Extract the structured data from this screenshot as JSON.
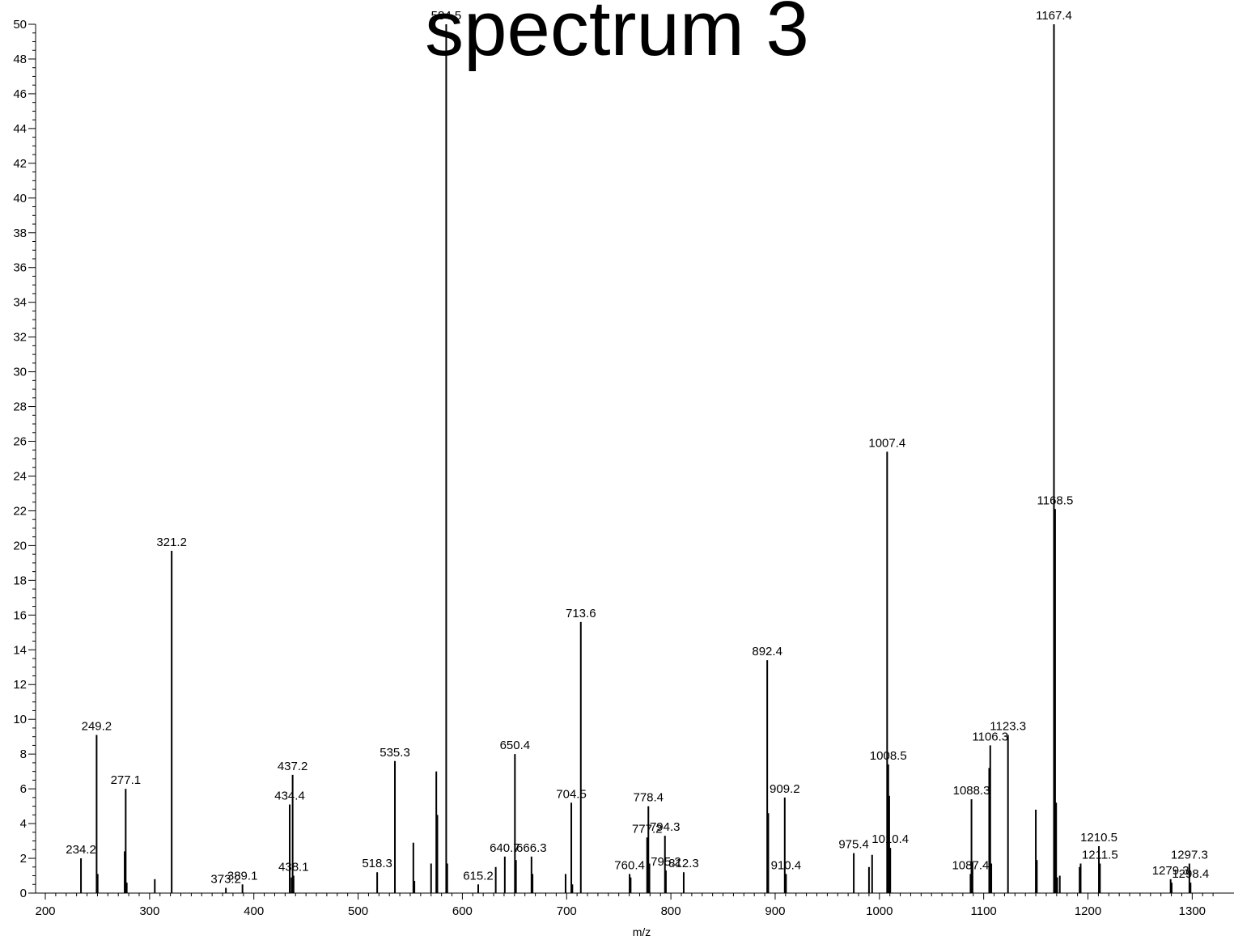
{
  "chart_data": {
    "type": "bar",
    "title": "spectrum 3",
    "xlabel": "m/z",
    "ylabel": "",
    "xlim": [
      195,
      1325
    ],
    "ylim": [
      0,
      50
    ],
    "x_ticks": [
      200,
      300,
      400,
      500,
      600,
      700,
      800,
      900,
      1000,
      1100,
      1200,
      1300
    ],
    "y_ticks": [
      0,
      2,
      4,
      6,
      8,
      10,
      12,
      14,
      16,
      18,
      20,
      22,
      24,
      26,
      28,
      30,
      32,
      34,
      36,
      38,
      40,
      42,
      44,
      46,
      48,
      50
    ],
    "grid": false,
    "colors": {
      "peaks": "#000000",
      "label_tick": "#2ca02c"
    },
    "labeled_peaks": [
      {
        "label": "234.2",
        "x": 234.2,
        "y": 2.0
      },
      {
        "label": "249.2",
        "x": 249.2,
        "y": 9.1
      },
      {
        "label": "277.1",
        "x": 277.1,
        "y": 6.0
      },
      {
        "label": "321.2",
        "x": 321.2,
        "y": 19.7
      },
      {
        "label": "373.2",
        "x": 373.2,
        "y": 0.3
      },
      {
        "label": "389.1",
        "x": 389.1,
        "y": 0.5
      },
      {
        "label": "434.4",
        "x": 434.4,
        "y": 5.1
      },
      {
        "label": "437.2",
        "x": 437.2,
        "y": 6.8
      },
      {
        "label": "438.1",
        "x": 438.1,
        "y": 1.0
      },
      {
        "label": "518.3",
        "x": 518.3,
        "y": 1.2
      },
      {
        "label": "535.3",
        "x": 535.3,
        "y": 7.6
      },
      {
        "label": "584.5",
        "x": 584.5,
        "y": 50.0
      },
      {
        "label": "615.2",
        "x": 615.2,
        "y": 0.5
      },
      {
        "label": "640.7",
        "x": 640.7,
        "y": 2.1
      },
      {
        "label": "650.4",
        "x": 650.4,
        "y": 8.0
      },
      {
        "label": "666.3",
        "x": 666.3,
        "y": 2.1
      },
      {
        "label": "704.5",
        "x": 704.5,
        "y": 5.2
      },
      {
        "label": "713.6",
        "x": 713.6,
        "y": 15.6
      },
      {
        "label": "760.4",
        "x": 760.4,
        "y": 1.1
      },
      {
        "label": "777.2",
        "x": 777.2,
        "y": 3.2
      },
      {
        "label": "778.4",
        "x": 778.4,
        "y": 5.0
      },
      {
        "label": "794.3",
        "x": 794.3,
        "y": 3.3
      },
      {
        "label": "795.2",
        "x": 795.2,
        "y": 1.3
      },
      {
        "label": "812.3",
        "x": 812.3,
        "y": 1.2
      },
      {
        "label": "892.4",
        "x": 892.4,
        "y": 13.4
      },
      {
        "label": "909.2",
        "x": 909.2,
        "y": 5.5
      },
      {
        "label": "910.4",
        "x": 910.4,
        "y": 1.1
      },
      {
        "label": "975.4",
        "x": 975.4,
        "y": 2.3
      },
      {
        "label": "1007.4",
        "x": 1007.4,
        "y": 25.4
      },
      {
        "label": "1008.5",
        "x": 1008.5,
        "y": 7.4
      },
      {
        "label": "1010.4",
        "x": 1010.4,
        "y": 2.6
      },
      {
        "label": "1087.4",
        "x": 1087.4,
        "y": 1.1
      },
      {
        "label": "1088.3",
        "x": 1088.3,
        "y": 5.4
      },
      {
        "label": "1106.3",
        "x": 1106.3,
        "y": 8.5
      },
      {
        "label": "1123.3",
        "x": 1123.3,
        "y": 9.1
      },
      {
        "label": "1167.4",
        "x": 1167.4,
        "y": 50.0
      },
      {
        "label": "1168.5",
        "x": 1168.5,
        "y": 22.1
      },
      {
        "label": "1210.5",
        "x": 1210.5,
        "y": 2.7
      },
      {
        "label": "1211.5",
        "x": 1211.5,
        "y": 1.7
      },
      {
        "label": "1279.3",
        "x": 1279.3,
        "y": 0.8
      },
      {
        "label": "1297.3",
        "x": 1297.3,
        "y": 1.7
      },
      {
        "label": "1298.4",
        "x": 1298.4,
        "y": 0.6
      }
    ],
    "minor_peaks": [
      {
        "x": 250.2,
        "y": 1.1
      },
      {
        "x": 276.1,
        "y": 2.4
      },
      {
        "x": 278.1,
        "y": 0.6
      },
      {
        "x": 305.0,
        "y": 0.8
      },
      {
        "x": 436.2,
        "y": 0.9
      },
      {
        "x": 553.0,
        "y": 2.9
      },
      {
        "x": 554.0,
        "y": 0.7
      },
      {
        "x": 570.0,
        "y": 1.7
      },
      {
        "x": 575.0,
        "y": 7.0
      },
      {
        "x": 576.0,
        "y": 4.5
      },
      {
        "x": 585.5,
        "y": 1.7
      },
      {
        "x": 632.0,
        "y": 1.5
      },
      {
        "x": 651.4,
        "y": 1.9
      },
      {
        "x": 667.3,
        "y": 1.1
      },
      {
        "x": 699.0,
        "y": 1.1
      },
      {
        "x": 705.5,
        "y": 0.5
      },
      {
        "x": 761.4,
        "y": 0.9
      },
      {
        "x": 779.4,
        "y": 1.7
      },
      {
        "x": 893.4,
        "y": 4.6
      },
      {
        "x": 990.0,
        "y": 1.5
      },
      {
        "x": 993.0,
        "y": 2.2
      },
      {
        "x": 1009.4,
        "y": 5.6
      },
      {
        "x": 1089.3,
        "y": 1.8
      },
      {
        "x": 1105.3,
        "y": 7.2
      },
      {
        "x": 1107.3,
        "y": 1.7
      },
      {
        "x": 1150.0,
        "y": 4.8
      },
      {
        "x": 1151.0,
        "y": 1.9
      },
      {
        "x": 1169.5,
        "y": 5.2
      },
      {
        "x": 1192.0,
        "y": 1.5
      },
      {
        "x": 1193.0,
        "y": 1.7
      },
      {
        "x": 1170.5,
        "y": 0.9
      },
      {
        "x": 1173.0,
        "y": 1.0
      },
      {
        "x": 1280.3,
        "y": 0.6
      }
    ]
  }
}
